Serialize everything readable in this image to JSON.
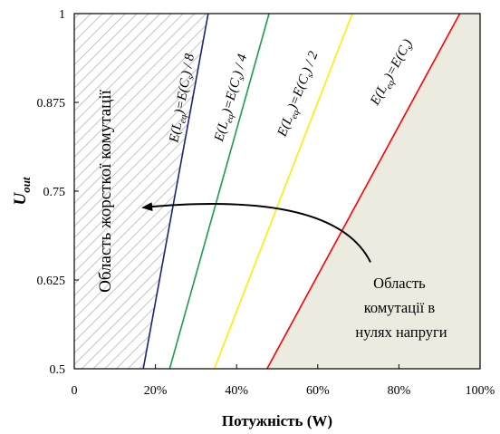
{
  "chart_data": {
    "type": "line",
    "title": "",
    "xlabel": "Потужність (W)",
    "ylabel_main": "U",
    "ylabel_sub": "out",
    "xlim": [
      0,
      100
    ],
    "ylim": [
      0.5,
      1.0
    ],
    "x_ticks": [
      {
        "value": 0,
        "label": "0"
      },
      {
        "value": 20,
        "label": "20%"
      },
      {
        "value": 40,
        "label": "40%"
      },
      {
        "value": 60,
        "label": "60%"
      },
      {
        "value": 80,
        "label": "80%"
      },
      {
        "value": 100,
        "label": "100%"
      }
    ],
    "y_ticks": [
      {
        "value": 0.5,
        "label": "0.5"
      },
      {
        "value": 0.625,
        "label": "0.625"
      },
      {
        "value": 0.75,
        "label": "0.75"
      },
      {
        "value": 0.875,
        "label": "0.875"
      },
      {
        "value": 1.0,
        "label": "1"
      }
    ],
    "series": [
      {
        "name": "E(Leq)=E(Cs)/8",
        "color": "#1a237e",
        "points": [
          [
            17,
            0.5
          ],
          [
            33,
            1.0
          ]
        ],
        "label_parts": [
          {
            "t": "E(L"
          },
          {
            "t": "eq",
            "sub": true
          },
          {
            "t": ")=E(C"
          },
          {
            "t": "s",
            "sub": true
          },
          {
            "t": ") / 8"
          }
        ],
        "label_at": [
          27.5,
          0.88
        ]
      },
      {
        "name": "E(Leq)=E(Cs)/4",
        "color": "#1b9e4b",
        "points": [
          [
            23.5,
            0.5
          ],
          [
            48,
            1.0
          ]
        ],
        "label_parts": [
          {
            "t": "E(L"
          },
          {
            "t": "eq",
            "sub": true
          },
          {
            "t": ")=E(C"
          },
          {
            "t": "s",
            "sub": true
          },
          {
            "t": ") / 4"
          }
        ],
        "label_at": [
          39.5,
          0.88
        ]
      },
      {
        "name": "E(Leq)=E(Cs)/2",
        "color": "#ffee00",
        "points": [
          [
            34.5,
            0.5
          ],
          [
            68.5,
            1.0
          ]
        ],
        "label_parts": [
          {
            "t": "E(L"
          },
          {
            "t": "eq",
            "sub": true
          },
          {
            "t": ")=E(C"
          },
          {
            "t": "s",
            "sub": true
          },
          {
            "t": ") / 2"
          }
        ],
        "label_at": [
          56,
          0.885
        ]
      },
      {
        "name": "E(Leq)=E(Cs)",
        "color": "#ff0000",
        "points": [
          [
            47.5,
            0.5
          ],
          [
            95,
            1.0
          ]
        ],
        "label_parts": [
          {
            "t": "E(L"
          },
          {
            "t": "eq",
            "sub": true
          },
          {
            "t": ")=E(C"
          },
          {
            "t": "s",
            "sub": true
          },
          {
            "t": ")"
          }
        ],
        "label_at": [
          79,
          0.915
        ]
      }
    ],
    "hard_region": {
      "label": "Область жорсткої комутації",
      "hatch_color": "#c8c8c8"
    },
    "zvs_region": {
      "label_lines": [
        "Область",
        "комутації в",
        "нулях напруги"
      ],
      "fill": "#ebebdf"
    },
    "arrow": {
      "from": [
        73,
        0.65
      ],
      "to": [
        17,
        0.727
      ]
    }
  }
}
